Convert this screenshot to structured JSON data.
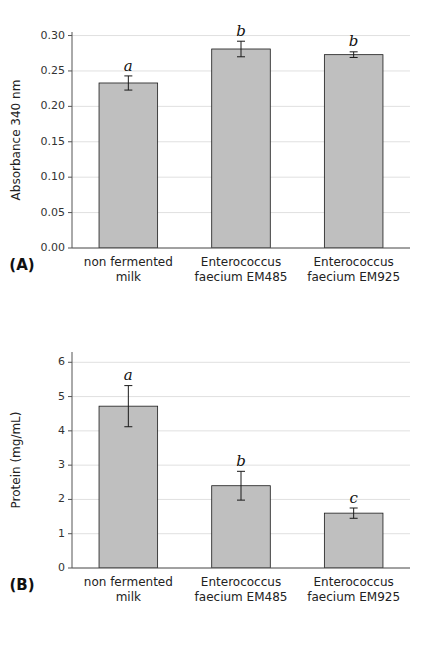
{
  "chart_data": [
    {
      "type": "bar",
      "title": "(A)",
      "categories": [
        [
          "non fermented",
          "milk"
        ],
        [
          "Enterococcus",
          "faecium EM485"
        ],
        [
          "Enterococcus",
          "faecium EM925"
        ]
      ],
      "values": [
        0.233,
        0.281,
        0.273
      ],
      "errors": [
        0.01,
        0.011,
        0.004
      ],
      "annotations": [
        "a",
        "b",
        "b"
      ],
      "ylabel": "Absorbance 340 nm",
      "ylim": [
        0.0,
        0.305
      ],
      "yticks": [
        {
          "value": 0.0,
          "label": "0.00"
        },
        0.05,
        {
          "value": 0.1,
          "label": "0.10"
        },
        0.15,
        {
          "value": 0.2,
          "label": "0.20"
        },
        0.25,
        {
          "value": 0.3,
          "label": "0.30"
        }
      ],
      "color": "#bfbfbf",
      "grid": true
    },
    {
      "type": "bar",
      "title": "(B)",
      "categories": [
        [
          "non fermented",
          "milk"
        ],
        [
          "Enterococcus",
          "faecium EM485"
        ],
        [
          "Enterococcus",
          "faecium EM925"
        ]
      ],
      "values": [
        4.72,
        2.4,
        1.6
      ],
      "errors": [
        0.6,
        0.42,
        0.15
      ],
      "annotations": [
        "a",
        "b",
        "c"
      ],
      "ylabel": "Protein (mg/mL)",
      "ylim": [
        0,
        6.3
      ],
      "yticks": [
        0,
        1,
        2,
        3,
        4,
        5,
        6
      ],
      "color": "#bfbfbf",
      "grid": true
    }
  ]
}
